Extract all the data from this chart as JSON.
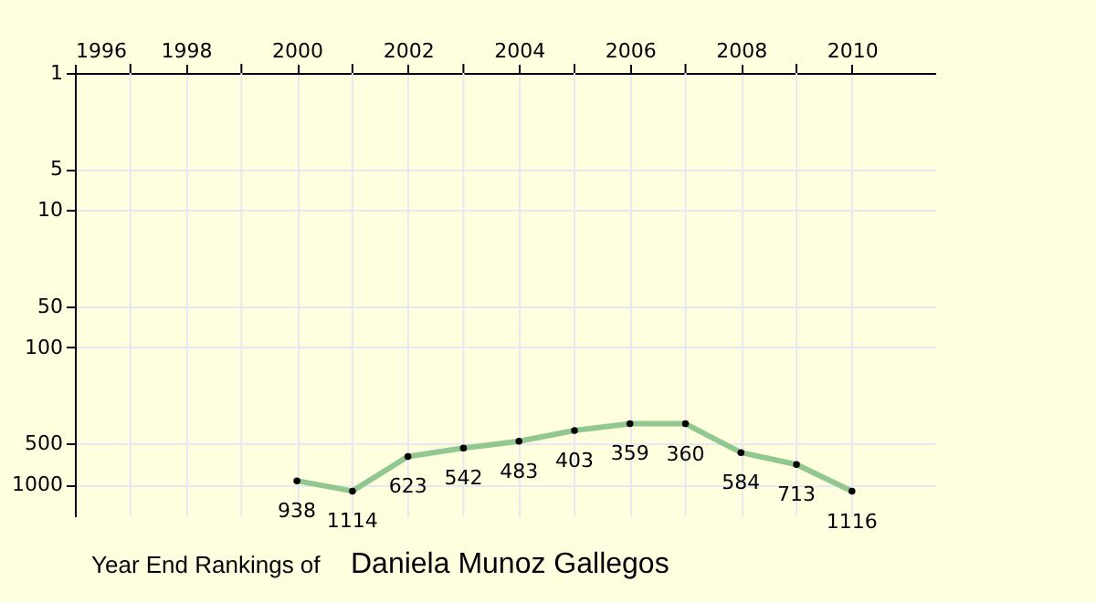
{
  "chart_data": {
    "type": "line",
    "title": "Year End Rankings of",
    "subtitle": "Daniela Munoz Gallegos",
    "x": [
      2000,
      2001,
      2002,
      2003,
      2004,
      2005,
      2006,
      2007,
      2008,
      2009,
      2010
    ],
    "series": [
      {
        "color": "#90c890",
        "values": [
          938,
          1114,
          623,
          542,
          483,
          403,
          359,
          360,
          584,
          713,
          1116
        ]
      }
    ],
    "data_labels": true,
    "marker": "circle",
    "log": "y",
    "xlim": [
      1996,
      2011.5
    ],
    "xticks": [
      1996,
      {
        "value": 1997,
        "label": null
      },
      1998,
      {
        "value": 1999,
        "label": null
      },
      2000,
      {
        "value": 2001,
        "label": null
      },
      2002,
      {
        "value": 2003,
        "label": null
      },
      2004,
      {
        "value": 2005,
        "label": null
      },
      2006,
      {
        "value": 2007,
        "label": null
      },
      2008,
      {
        "value": 2009,
        "label": null
      },
      2010
    ],
    "ylim": [
      1700,
      1
    ],
    "yticks": [
      1,
      5,
      10,
      50,
      100,
      500,
      1000
    ],
    "grid": true
  }
}
